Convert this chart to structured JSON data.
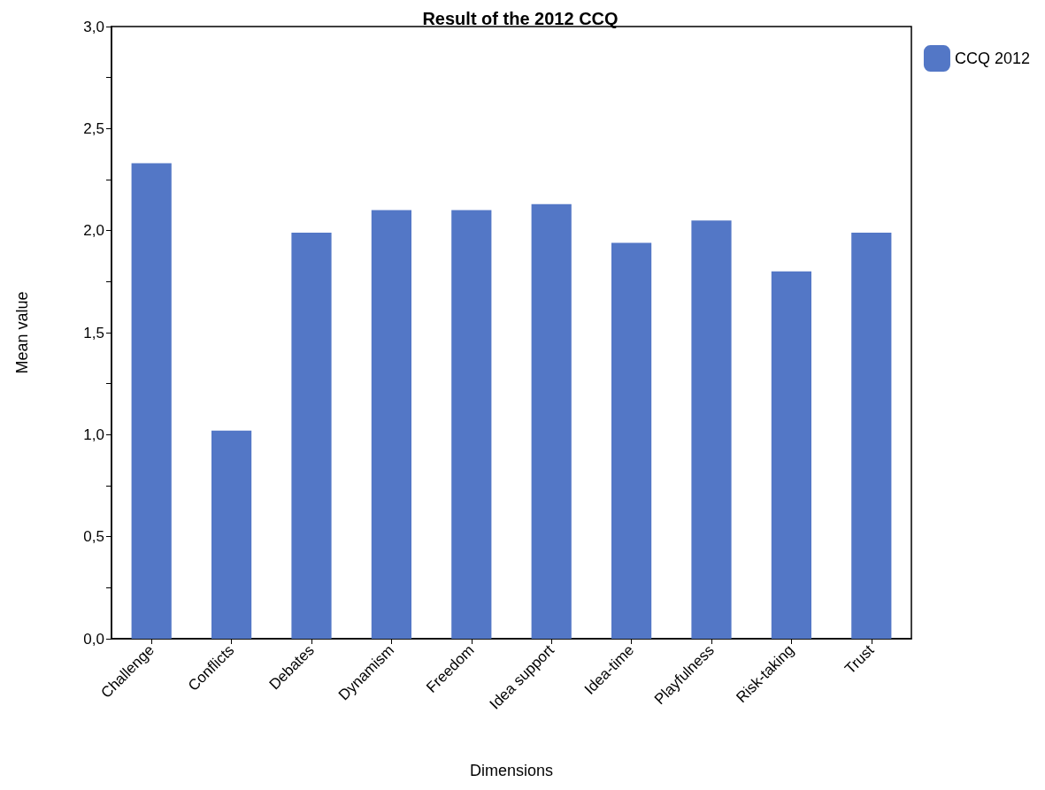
{
  "chart_data": {
    "type": "bar",
    "title": "Result of the 2012 CCQ",
    "xlabel": "Dimensions",
    "ylabel": "Mean value",
    "categories": [
      "Challenge",
      "Conflicts",
      "Debates",
      "Dynamism",
      "Freedom",
      "Idea support",
      "Idea-time",
      "Playfulness",
      "Risk-taking",
      "Trust"
    ],
    "series": [
      {
        "name": "CCQ 2012",
        "color": "#5377c6",
        "values": [
          2.33,
          1.02,
          1.99,
          2.1,
          2.1,
          2.13,
          1.94,
          2.05,
          1.8,
          1.99
        ]
      }
    ],
    "ylim": [
      0,
      3
    ],
    "yticks": [
      {
        "value": 0,
        "label": "0,0"
      },
      {
        "value": 0.25,
        "label": null
      },
      {
        "value": 0.5,
        "label": "0,5"
      },
      {
        "value": 0.75,
        "label": null
      },
      {
        "value": 1,
        "label": "1,0"
      },
      {
        "value": 1.25,
        "label": null
      },
      {
        "value": 1.5,
        "label": "1,5"
      },
      {
        "value": 1.75,
        "label": null
      },
      {
        "value": 2,
        "label": "2,0"
      },
      {
        "value": 2.25,
        "label": null
      },
      {
        "value": 2.5,
        "label": "2,5"
      },
      {
        "value": 2.75,
        "label": null
      },
      {
        "value": 3,
        "label": "3,0"
      }
    ],
    "grid": false,
    "legend": "top right"
  }
}
